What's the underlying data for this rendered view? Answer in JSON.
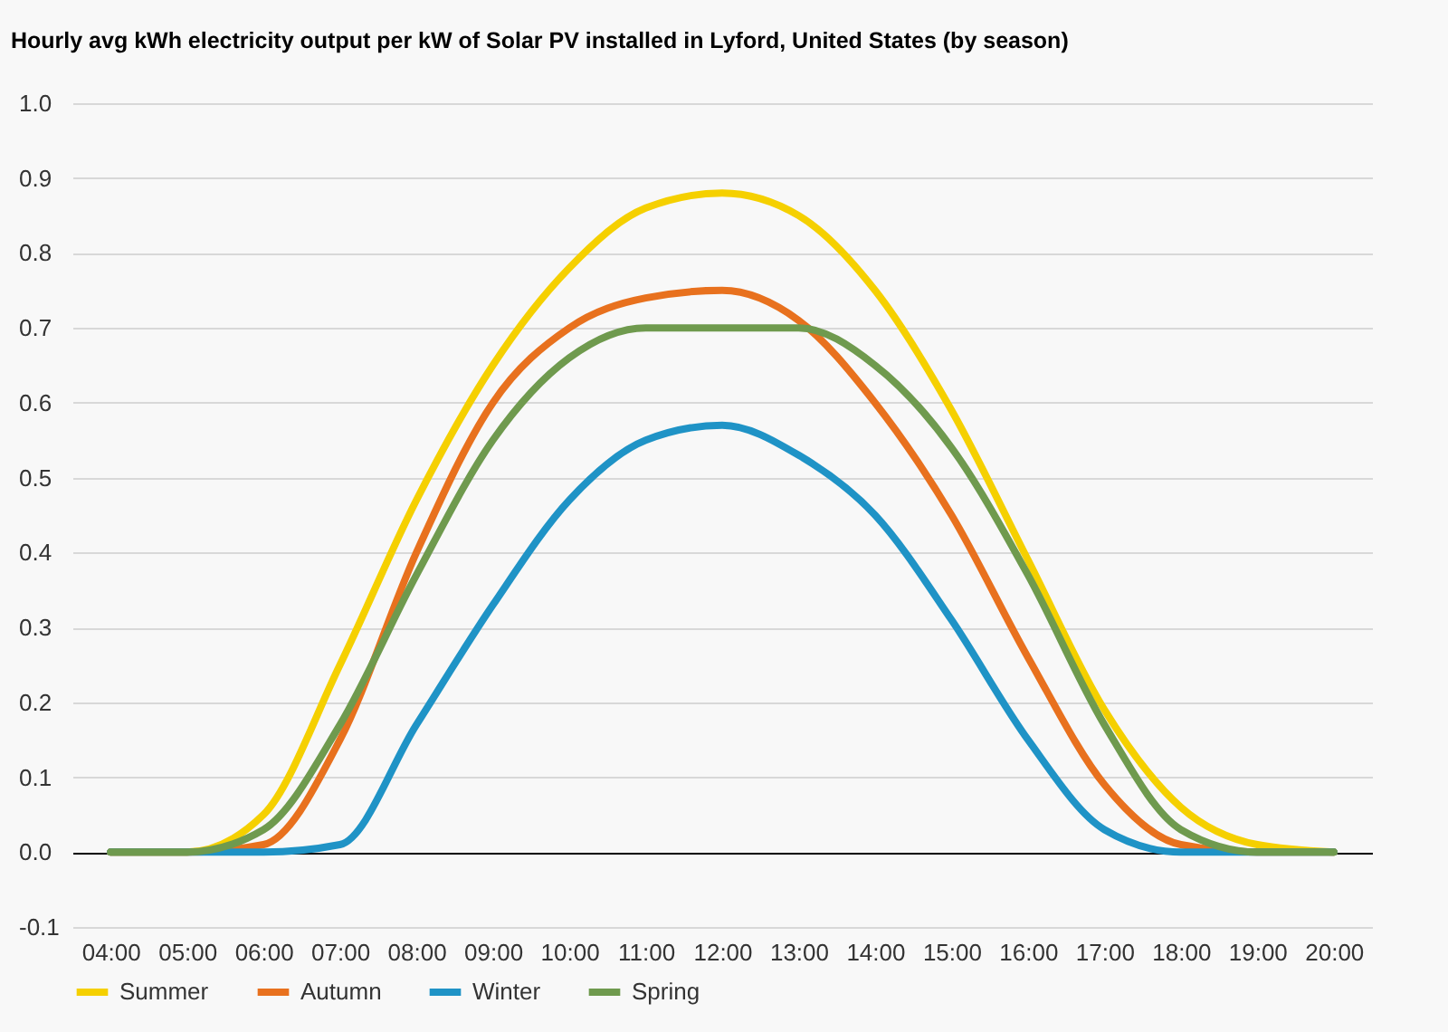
{
  "chart_data": {
    "type": "line",
    "title": "Hourly avg kWh electricity output per kW of Solar PV installed in Lyford, United States (by season)",
    "x": [
      4,
      5,
      6,
      7,
      8,
      9,
      10,
      11,
      12,
      13,
      14,
      15,
      16,
      17,
      18,
      19,
      20
    ],
    "xlim": [
      3.5,
      20.5
    ],
    "xticks": [
      {
        "value": 4,
        "label": "04:00"
      },
      {
        "value": 5,
        "label": "05:00"
      },
      {
        "value": 6,
        "label": "06:00"
      },
      {
        "value": 7,
        "label": "07:00"
      },
      {
        "value": 8,
        "label": "08:00"
      },
      {
        "value": 9,
        "label": "09:00"
      },
      {
        "value": 10,
        "label": "10:00"
      },
      {
        "value": 11,
        "label": "11:00"
      },
      {
        "value": 12,
        "label": "12:00"
      },
      {
        "value": 13,
        "label": "13:00"
      },
      {
        "value": 14,
        "label": "14:00"
      },
      {
        "value": 15,
        "label": "15:00"
      },
      {
        "value": 16,
        "label": "16:00"
      },
      {
        "value": 17,
        "label": "17:00"
      },
      {
        "value": 18,
        "label": "18:00"
      },
      {
        "value": 19,
        "label": "19:00"
      },
      {
        "value": 20,
        "label": "20:00"
      }
    ],
    "ylim": [
      -0.1,
      1.0
    ],
    "yticks": [
      {
        "value": -0.1,
        "label": "-0.1"
      },
      {
        "value": 0,
        "label": "0.0"
      },
      {
        "value": 0.1,
        "label": "0.1"
      },
      {
        "value": 0.2,
        "label": "0.2"
      },
      {
        "value": 0.3,
        "label": "0.3"
      },
      {
        "value": 0.4,
        "label": "0.4"
      },
      {
        "value": 0.5,
        "label": "0.5"
      },
      {
        "value": 0.6,
        "label": "0.6"
      },
      {
        "value": 0.7,
        "label": "0.7"
      },
      {
        "value": 0.8,
        "label": "0.8"
      },
      {
        "value": 0.9,
        "label": "0.9"
      },
      {
        "value": 1.0,
        "label": "1.0"
      }
    ],
    "grid": "y",
    "legend": "bottom",
    "line_style": "solid",
    "series": [
      {
        "name": "Summer",
        "color": "#f5d000",
        "values": [
          0,
          0,
          0.05,
          0.25,
          0.47,
          0.65,
          0.78,
          0.86,
          0.88,
          0.85,
          0.75,
          0.59,
          0.39,
          0.19,
          0.06,
          0.01,
          0
        ]
      },
      {
        "name": "Autumn",
        "color": "#e8711e",
        "values": [
          0,
          0,
          0.01,
          0.15,
          0.4,
          0.6,
          0.7,
          0.74,
          0.75,
          0.71,
          0.6,
          0.45,
          0.26,
          0.09,
          0.01,
          0,
          0
        ]
      },
      {
        "name": "Winter",
        "color": "#1f93c6",
        "values": [
          0,
          0,
          0,
          0.01,
          0.17,
          0.33,
          0.47,
          0.55,
          0.57,
          0.53,
          0.45,
          0.31,
          0.15,
          0.03,
          0,
          0,
          0
        ]
      },
      {
        "name": "Spring",
        "color": "#6f9a4e",
        "values": [
          0,
          0,
          0.03,
          0.17,
          0.37,
          0.55,
          0.66,
          0.7,
          0.7,
          0.7,
          0.65,
          0.54,
          0.37,
          0.17,
          0.03,
          0,
          0
        ]
      }
    ]
  }
}
